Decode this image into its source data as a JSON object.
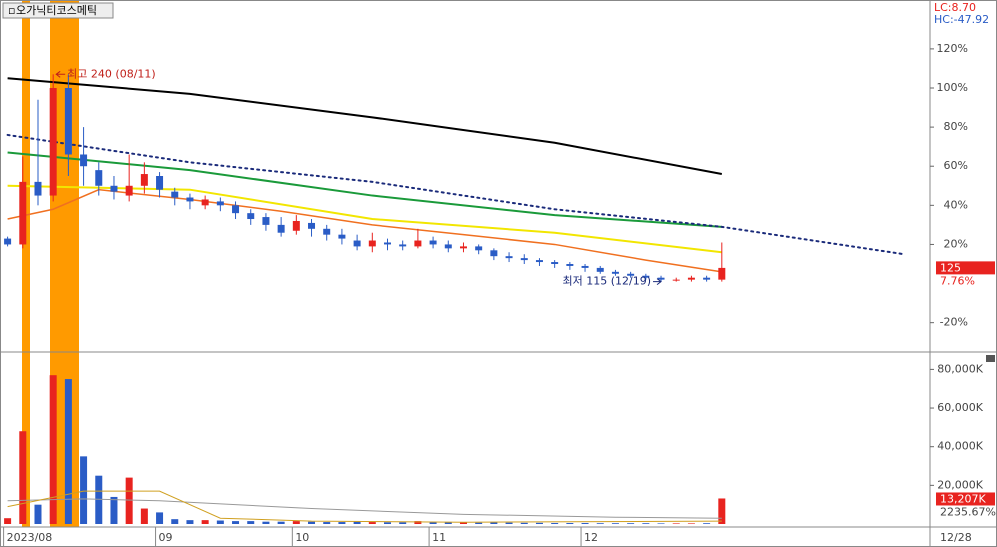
{
  "chart_data": {
    "type": "candlestick",
    "title": "오가닉티코스메틱",
    "xlim": [
      -0.5,
      60.7
    ],
    "xticks": [
      {
        "value": 0,
        "label": "2023/08"
      },
      {
        "value": 10,
        "label": "09"
      },
      {
        "value": 19,
        "label": "10"
      },
      {
        "value": 28,
        "label": "11"
      },
      {
        "value": 38,
        "label": "12"
      }
    ],
    "last_date": "12/28",
    "ylim": [
      -35,
      145
    ],
    "yticks": [
      {
        "value": -20,
        "label": "-20%"
      },
      {
        "value": 20,
        "label": "20%"
      },
      {
        "value": 40,
        "label": "40%"
      },
      {
        "value": 60,
        "label": "60%"
      },
      {
        "value": 80,
        "label": "80%"
      },
      {
        "value": 100,
        "label": "100%"
      },
      {
        "value": 120,
        "label": "120%"
      }
    ],
    "lc_label": "LC:8.70",
    "hc_label": "HC:-47.92",
    "up_color": "#e8231f",
    "down_color": "#2a5cc6",
    "open": [
      23,
      20,
      52,
      45,
      100,
      66,
      58,
      50,
      45,
      50,
      55,
      47,
      44,
      40,
      42,
      40,
      36,
      34,
      30,
      27,
      31,
      28,
      25,
      22,
      19,
      21,
      20,
      19,
      22,
      20,
      18,
      19,
      17,
      14,
      13,
      12,
      11,
      10,
      9,
      8,
      6,
      5,
      4,
      3,
      2,
      2,
      3,
      2
    ],
    "close": [
      20,
      52,
      45,
      100,
      66,
      60,
      50,
      47,
      50,
      56,
      48,
      44,
      42,
      43,
      40,
      36,
      33,
      30,
      26,
      32,
      28,
      25,
      23,
      19,
      22,
      20,
      19,
      22,
      20,
      18,
      19,
      17,
      14,
      13,
      12,
      11,
      10,
      9,
      8,
      6,
      5,
      4,
      3,
      2,
      2,
      3,
      2,
      8
    ],
    "high": [
      24,
      65,
      94,
      107,
      107,
      80,
      62,
      55,
      66,
      62,
      57,
      49,
      46,
      45,
      44,
      42,
      38,
      36,
      34,
      35,
      33,
      30,
      28,
      25,
      26,
      23,
      22,
      28,
      24,
      22,
      21,
      20,
      18,
      16,
      15,
      13,
      12,
      11,
      10,
      9,
      7,
      6,
      5,
      4,
      3,
      4,
      4,
      21
    ],
    "low": [
      19,
      18,
      40,
      42,
      55,
      50,
      45,
      43,
      42,
      46,
      44,
      40,
      38,
      38,
      37,
      33,
      30,
      27,
      24,
      25,
      24,
      22,
      20,
      17,
      16,
      17,
      17,
      18,
      18,
      16,
      16,
      15,
      12,
      11,
      10,
      9,
      8,
      7,
      6,
      5,
      4,
      3,
      2,
      1,
      1,
      1,
      1,
      1
    ],
    "lines": [
      {
        "color": "#000000",
        "width": 2,
        "x": [
          0,
          12,
          24,
          36,
          47
        ],
        "values": [
          105,
          97,
          85,
          72,
          56
        ]
      },
      {
        "color": "#1a9a3a",
        "width": 2,
        "x": [
          0,
          12,
          24,
          36,
          47
        ],
        "values": [
          67,
          58,
          45,
          35,
          29
        ]
      },
      {
        "color": "#f2e600",
        "width": 2,
        "x": [
          0,
          12,
          24,
          36,
          47
        ],
        "values": [
          50,
          48,
          33,
          26,
          16
        ]
      },
      {
        "color": "#f07020",
        "width": 1.5,
        "x": [
          0,
          3,
          6,
          12,
          18,
          24,
          30,
          36,
          42,
          47
        ],
        "values": [
          33,
          38,
          48,
          43,
          37,
          30,
          25,
          20,
          12,
          6
        ]
      },
      {
        "color": "#1a2a7a",
        "width": 2,
        "dotted": true,
        "x": [
          0,
          12,
          24,
          36,
          47,
          59
        ],
        "values": [
          76,
          62,
          52,
          38,
          29,
          15
        ]
      }
    ],
    "annotations": [
      {
        "text": "최고 240 (08/11)",
        "x": 3,
        "y": 107,
        "color": "#c0201a"
      },
      {
        "text": "최저 115 (12/19)",
        "x": 43,
        "y": 1,
        "color": "#1a2a7a"
      }
    ],
    "current_price_label": "125",
    "current_change": {
      "value": 7.76,
      "label": "7.76%"
    },
    "volume": {
      "ylim": [
        0,
        89000
      ],
      "yticks": [
        {
          "value": 20000,
          "label": "20,000K"
        },
        {
          "value": 40000,
          "label": "40,000K"
        },
        {
          "value": 60000,
          "label": "60,000K"
        },
        {
          "value": 80000,
          "label": "80,000K"
        }
      ],
      "values": [
        3000,
        48000,
        10000,
        77000,
        75000,
        35000,
        25000,
        14000,
        24000,
        8000,
        6000,
        2500,
        2000,
        2000,
        1800,
        1500,
        1500,
        1200,
        1200,
        1500,
        1200,
        1000,
        1000,
        1200,
        1000,
        900,
        900,
        1500,
        900,
        800,
        800,
        700,
        900,
        700,
        600,
        600,
        500,
        500,
        500,
        400,
        400,
        400,
        400,
        300,
        300,
        300,
        400,
        13207
      ],
      "value_labels_last": "13,207K",
      "ratio_label": "2235.67%",
      "lines": [
        {
          "color": "#999999",
          "x": [
            0,
            5,
            10,
            20,
            30,
            40,
            47
          ],
          "values": [
            12000,
            13000,
            12000,
            8000,
            5000,
            3500,
            3000
          ]
        },
        {
          "color": "#d0a020",
          "x": [
            0,
            5,
            10,
            14,
            20,
            30,
            47
          ],
          "values": [
            9000,
            17000,
            17000,
            3000,
            1500,
            900,
            1500
          ]
        }
      ]
    }
  }
}
